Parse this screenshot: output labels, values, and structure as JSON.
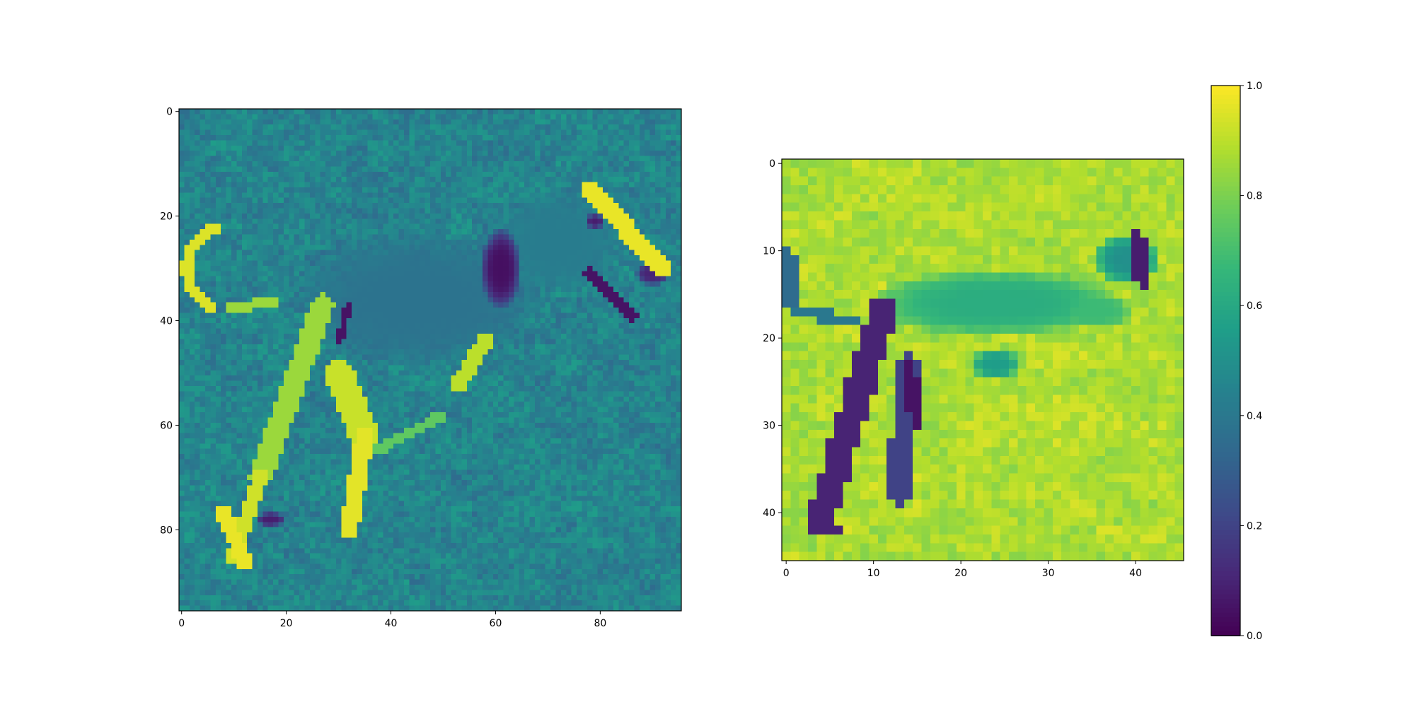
{
  "chart_data": [
    {
      "type": "heatmap",
      "title": "",
      "xlabel": "",
      "ylabel": "",
      "grid": false,
      "xlim": [
        -0.5,
        95.5
      ],
      "ylim": [
        95.5,
        -0.5
      ],
      "rows": 96,
      "cols": 96,
      "value_range": [
        0.0,
        1.0
      ],
      "x_ticks": [
        0,
        20,
        40,
        60,
        80
      ],
      "y_ticks": [
        0,
        20,
        40,
        60,
        80
      ],
      "description_of_values": "grayscale input image of a running dog, values 0-1",
      "features": [
        {
          "kind": "background",
          "mean": 0.45,
          "noise": 0.07
        },
        {
          "kind": "body",
          "cx": 45,
          "cy": 36,
          "rx": 24,
          "ry": 13,
          "value": 0.38
        },
        {
          "kind": "head",
          "cx": 72,
          "cy": 25,
          "rx": 12,
          "ry": 10,
          "value": 0.42
        },
        {
          "kind": "collar",
          "cx": 61,
          "cy": 30,
          "rx": 4,
          "ry": 8,
          "value": 0.04
        },
        {
          "kind": "eye",
          "cx": 79,
          "cy": 21,
          "rx": 2,
          "ry": 1.5,
          "value": 0.08
        },
        {
          "kind": "nose",
          "cx": 90,
          "cy": 31,
          "rx": 3.5,
          "ry": 2.5,
          "value": 0.1
        },
        {
          "kind": "mouth",
          "x1": 78,
          "y1": 31,
          "x2": 86,
          "y2": 39,
          "w": 1.2,
          "value": 0.05
        },
        {
          "kind": "ear",
          "x1": 78,
          "y1": 15,
          "x2": 92,
          "y2": 30,
          "w": 1.8,
          "value": 0.97
        },
        {
          "kind": "tail",
          "cx": 9,
          "cy": 30,
          "r": 8,
          "a0": 110,
          "a1": 260,
          "w": 1.2,
          "value": 0.95
        },
        {
          "kind": "tail-base",
          "x1": 9,
          "y1": 38,
          "x2": 18,
          "y2": 36,
          "w": 1,
          "value": 0.85
        },
        {
          "kind": "front-leg",
          "x1": 58,
          "y1": 44,
          "x2": 53,
          "y2": 52,
          "w": 1.5,
          "value": 0.9
        },
        {
          "kind": "hind-leg-left",
          "x1": 27,
          "y1": 37,
          "x2": 15,
          "y2": 70,
          "w": 2.2,
          "value": 0.85
        },
        {
          "kind": "hind-leg-left-lower",
          "x1": 15,
          "y1": 70,
          "x2": 10,
          "y2": 85,
          "w": 1.5,
          "value": 0.93
        },
        {
          "kind": "paw-left",
          "x1": 8,
          "y1": 77,
          "x2": 12,
          "y2": 86,
          "w": 1.5,
          "value": 0.97
        },
        {
          "kind": "hind-leg-right",
          "x1": 30,
          "y1": 50,
          "x2": 35,
          "y2": 62,
          "w": 2.8,
          "value": 0.92
        },
        {
          "kind": "hind-leg-right-lower",
          "x1": 35,
          "y1": 62,
          "x2": 32,
          "y2": 80,
          "w": 1.8,
          "value": 0.96
        },
        {
          "kind": "belly-line",
          "x1": 37,
          "y1": 65,
          "x2": 50,
          "y2": 58,
          "w": 1,
          "value": 0.75
        },
        {
          "kind": "dark-spot",
          "cx": 17,
          "cy": 78,
          "rx": 3,
          "ry": 1.5,
          "value": 0.08
        },
        {
          "kind": "dark-mark",
          "x1": 32,
          "y1": 37,
          "x2": 30,
          "y2": 44,
          "w": 0.8,
          "value": 0.05
        }
      ]
    },
    {
      "type": "heatmap",
      "title": "",
      "xlabel": "",
      "ylabel": "",
      "grid": false,
      "xlim": [
        -0.5,
        45.5
      ],
      "ylim": [
        45.5,
        -0.5
      ],
      "rows": 46,
      "cols": 46,
      "value_range": [
        0.0,
        1.0
      ],
      "x_ticks": [
        0,
        10,
        20,
        30,
        40
      ],
      "y_ticks": [
        0,
        10,
        20,
        30,
        40
      ],
      "description_of_values": "attention/feature map, mostly high values with low values along the dog silhouette",
      "features": [
        {
          "kind": "background",
          "mean": 0.88,
          "noise": 0.05
        },
        {
          "kind": "body-band",
          "cx": 24,
          "cy": 16,
          "rx": 15,
          "ry": 4,
          "value": 0.62
        },
        {
          "kind": "head",
          "cx": 39,
          "cy": 11,
          "rx": 4,
          "ry": 3,
          "value": 0.5
        },
        {
          "kind": "head-dark",
          "x1": 40,
          "y1": 8,
          "x2": 41,
          "y2": 14,
          "w": 0.9,
          "value": 0.08
        },
        {
          "kind": "tail",
          "x1": 0,
          "y1": 10,
          "x2": 1,
          "y2": 17,
          "w": 0.9,
          "value": 0.35
        },
        {
          "kind": "tail-base",
          "x1": 1,
          "y1": 17,
          "x2": 8,
          "y2": 18,
          "w": 0.7,
          "value": 0.4
        },
        {
          "kind": "leg-left",
          "x1": 11,
          "y1": 17,
          "x2": 4,
          "y2": 41,
          "w": 1.6,
          "value": 0.1
        },
        {
          "kind": "leg-left-foot",
          "x1": 4,
          "y1": 41,
          "x2": 6,
          "y2": 42,
          "w": 0.8,
          "value": 0.1
        },
        {
          "kind": "leg-right",
          "x1": 14,
          "y1": 23,
          "x2": 13,
          "y2": 38,
          "w": 1.4,
          "value": 0.2
        },
        {
          "kind": "leg-right-dark",
          "x1": 14,
          "y1": 23,
          "x2": 15,
          "y2": 30,
          "w": 0.8,
          "value": 0.05
        },
        {
          "kind": "mid-patch",
          "cx": 24,
          "cy": 23,
          "rx": 3,
          "ry": 2,
          "value": 0.55
        },
        {
          "kind": "right-patch",
          "cx": 36,
          "cy": 17,
          "rx": 4,
          "ry": 2,
          "value": 0.68
        }
      ]
    }
  ],
  "colorbar": {
    "ticks": [
      "0.0",
      "0.2",
      "0.4",
      "0.6",
      "0.8",
      "1.0"
    ],
    "range": [
      0.0,
      1.0
    ],
    "colormap": "viridis"
  }
}
